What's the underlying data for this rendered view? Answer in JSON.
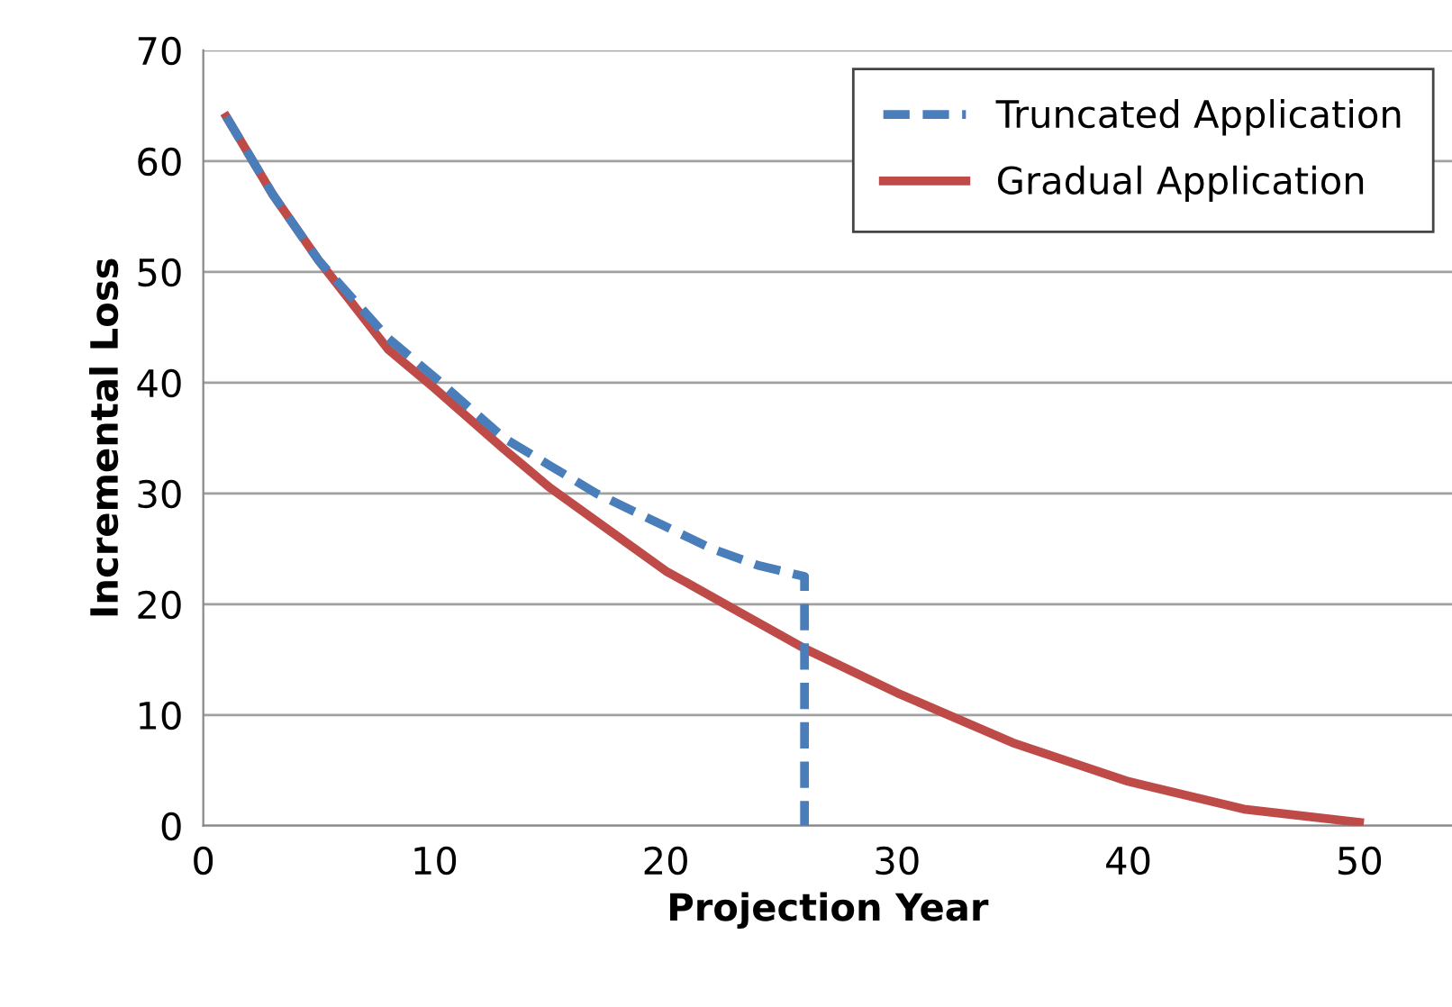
{
  "chart_data": {
    "type": "line",
    "xlabel": "Projection Year",
    "ylabel": "Incremental Loss",
    "xlim": [
      0,
      54
    ],
    "ylim": [
      0,
      70
    ],
    "xticks": [
      0,
      10,
      20,
      30,
      40,
      50
    ],
    "yticks": [
      0,
      10,
      20,
      30,
      40,
      50,
      60,
      70
    ],
    "grid": "y",
    "legend": "top right",
    "series": [
      {
        "name": "Truncated Application",
        "color": "#4a7ebb",
        "line_style": "dashed",
        "x": [
          1,
          3,
          5,
          8,
          10,
          13,
          15,
          17,
          20,
          22,
          24,
          26,
          26
        ],
        "values": [
          64,
          57,
          51,
          44,
          40.5,
          35,
          32.5,
          30,
          27,
          25,
          23.5,
          22.5,
          0
        ]
      },
      {
        "name": "Gradual Application",
        "color": "#be4b48",
        "line_style": "solid",
        "x": [
          1,
          3,
          5,
          8,
          10,
          13,
          15,
          18,
          20,
          23,
          26,
          30,
          35,
          40,
          45,
          50
        ],
        "values": [
          64,
          57,
          51,
          43,
          39.5,
          34,
          30.5,
          26,
          23,
          19.5,
          16,
          12,
          7.5,
          4,
          1.5,
          0.3
        ]
      }
    ]
  }
}
